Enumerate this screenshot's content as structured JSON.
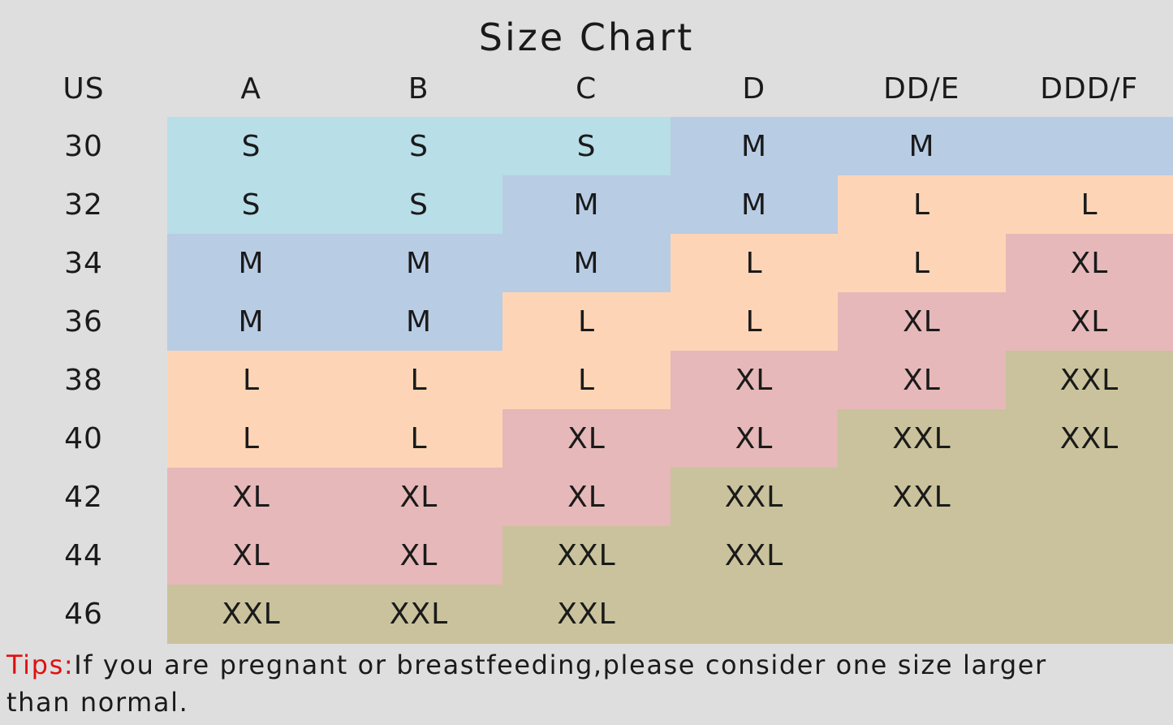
{
  "title": "Size Chart",
  "header": [
    "US",
    "A",
    "B",
    "C",
    "D",
    "DD/E",
    "DDD/F"
  ],
  "rows": [
    {
      "us": "30",
      "cells": [
        "S",
        "S",
        "S",
        "M",
        "M",
        null
      ],
      "fills": [
        "#b8dee8",
        "#b8dee8",
        "#b8dee8",
        "#b8cce4",
        "#b8cce4",
        "#b8cce4"
      ]
    },
    {
      "us": "32",
      "cells": [
        "S",
        "S",
        "M",
        "M",
        "L",
        "L"
      ],
      "fills": [
        "#b8dee8",
        "#b8dee8",
        "#b8cce4",
        "#b8cce4",
        "#fdd5b6",
        "#fdd5b6"
      ]
    },
    {
      "us": "34",
      "cells": [
        "M",
        "M",
        "M",
        "L",
        "L",
        "XL"
      ],
      "fills": [
        "#b8cce4",
        "#b8cce4",
        "#b8cce4",
        "#fdd5b6",
        "#fdd5b6",
        "#e6b8b9"
      ]
    },
    {
      "us": "36",
      "cells": [
        "M",
        "M",
        "L",
        "L",
        "XL",
        "XL"
      ],
      "fills": [
        "#b8cce4",
        "#b8cce4",
        "#fdd5b6",
        "#fdd5b6",
        "#e6b8b9",
        "#e6b8b9"
      ]
    },
    {
      "us": "38",
      "cells": [
        "L",
        "L",
        "L",
        "XL",
        "XL",
        "XXL"
      ],
      "fills": [
        "#fdd5b6",
        "#fdd5b6",
        "#fdd5b6",
        "#e6b8b9",
        "#e6b8b9",
        "#c9c29c"
      ]
    },
    {
      "us": "40",
      "cells": [
        "L",
        "L",
        "XL",
        "XL",
        "XXL",
        "XXL"
      ],
      "fills": [
        "#fdd5b6",
        "#fdd5b6",
        "#e6b8b9",
        "#e6b8b9",
        "#c9c29c",
        "#c9c29c"
      ]
    },
    {
      "us": "42",
      "cells": [
        "XL",
        "XL",
        "XL",
        "XXL",
        "XXL",
        null
      ],
      "fills": [
        "#e6b8b9",
        "#e6b8b9",
        "#e6b8b9",
        "#c9c29c",
        "#c9c29c",
        "#c9c29c"
      ]
    },
    {
      "us": "44",
      "cells": [
        "XL",
        "XL",
        "XXL",
        "XXL",
        null,
        null
      ],
      "fills": [
        "#e6b8b9",
        "#e6b8b9",
        "#c9c29c",
        "#c9c29c",
        "#c9c29c",
        "#c9c29c"
      ]
    },
    {
      "us": "46",
      "cells": [
        "XXL",
        "XXL",
        "XXL",
        null,
        null,
        null
      ],
      "fills": [
        "#c9c29c",
        "#c9c29c",
        "#c9c29c",
        "#c9c29c",
        "#c9c29c",
        "#c9c29c"
      ]
    }
  ],
  "tips": {
    "label": "Tips:",
    "text": "If you are pregnant or breastfeeding,please consider one size larger than normal."
  }
}
